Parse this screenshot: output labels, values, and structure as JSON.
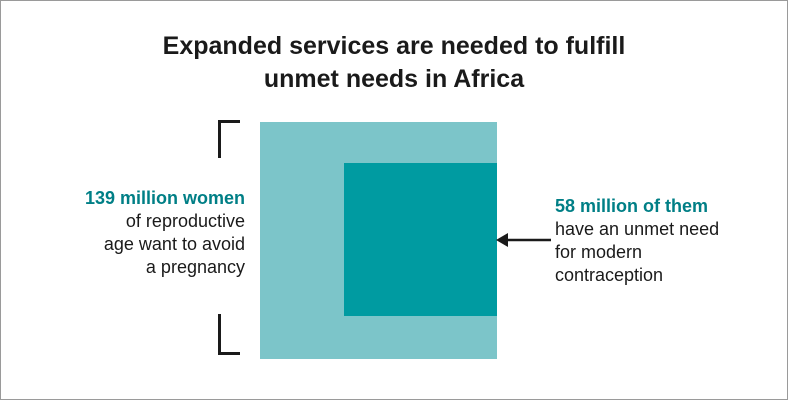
{
  "title": {
    "line1": "Expanded services are needed to fulfill",
    "line2": "unmet needs in Africa"
  },
  "left_annotation": {
    "highlight": "139 million women",
    "lines": [
      "of reproductive",
      "age want to avoid",
      "a pregnancy"
    ]
  },
  "right_annotation": {
    "highlight": "58 million of them",
    "lines": [
      "have an unmet need",
      "for modern",
      "contraception"
    ]
  },
  "values": {
    "women_wanting_to_avoid_pregnancy_millions": 139,
    "women_with_unmet_need_millions": 58
  },
  "colors": {
    "outer_square": "#7cc5c9",
    "inner_square": "#009ba1",
    "highlight_text": "#007f86",
    "text": "#1a1a1a"
  }
}
